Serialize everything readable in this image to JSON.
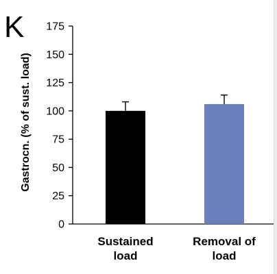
{
  "panel_label": "K",
  "chart_data": {
    "type": "bar",
    "categories": [
      [
        "Sustained",
        "load"
      ],
      [
        "Removal of",
        "load"
      ]
    ],
    "values": [
      100,
      106
    ],
    "errors": [
      8,
      8
    ],
    "colors": [
      "#000000",
      "#6b80bb"
    ],
    "ylabel": "Gastrocn. (% of sust. load)",
    "ylim": [
      0,
      175
    ],
    "yticks": [
      0,
      25,
      50,
      75,
      100,
      125,
      150,
      175
    ],
    "grid": false
  }
}
